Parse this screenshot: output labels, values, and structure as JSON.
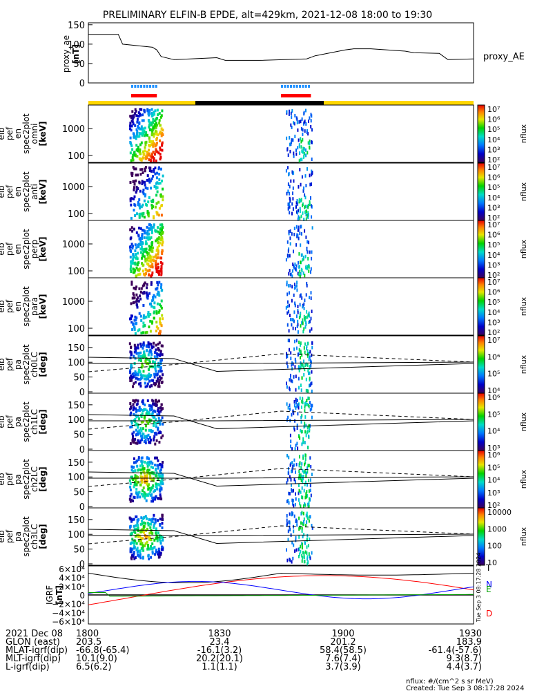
{
  "chart_data": {
    "type": "spectrogram-stack",
    "title": "PRELIMINARY ELFIN-B EPDE, alt=429km, 2021-12-08 18:00 to 19:30",
    "time_range": [
      "2021-12-08 18:00",
      "2021-12-08 19:30"
    ],
    "x_ticks": [
      "1800",
      "1830",
      "1900",
      "1930"
    ],
    "panels": [
      {
        "id": "ae",
        "type": "line",
        "ylabel": [
          "proxy_ae",
          "[nT]"
        ],
        "ytick_labels": [
          "150",
          "100",
          "50",
          "0"
        ],
        "ylim": [
          0,
          150
        ],
        "right_label": "proxy_AE",
        "series_x_min": [
          0,
          7,
          8,
          15,
          16,
          17,
          20,
          30,
          32,
          40,
          51,
          53,
          60,
          62,
          66,
          74,
          76,
          82,
          84,
          90
        ],
        "series_values": [
          125,
          125,
          100,
          92,
          85,
          68,
          60,
          65,
          58,
          58,
          62,
          70,
          85,
          88,
          88,
          82,
          78,
          76,
          60,
          62
        ]
      },
      {
        "id": "indicators",
        "type": "bars",
        "blue_ranges_min": [
          [
            10,
            16
          ],
          [
            45,
            52
          ]
        ],
        "red_ranges_min": [
          [
            10,
            16
          ],
          [
            45,
            52
          ]
        ],
        "yellow_black_bar_min": [
          [
            0,
            25,
            "yellow"
          ],
          [
            25,
            55,
            "black"
          ],
          [
            55,
            90,
            "yellow"
          ]
        ]
      },
      {
        "id": "omni",
        "type": "heatmap",
        "ylabel": [
          "elb",
          "pef",
          "en",
          "spec2plot",
          "omni",
          "[keV]"
        ],
        "ytick_labels": [
          "1000",
          "100"
        ],
        "colorbar": {
          "label": "nflux",
          "ticks": [
            "10⁷",
            "10⁶",
            "10⁵",
            "10⁴",
            "10³",
            "10²"
          ]
        }
      },
      {
        "id": "anti",
        "type": "heatmap",
        "ylabel": [
          "elb",
          "pef",
          "en",
          "spec2plot",
          "anti",
          "[keV]"
        ],
        "ytick_labels": [
          "1000",
          "100"
        ],
        "colorbar": {
          "label": "nflux",
          "ticks": [
            "10⁷",
            "10⁶",
            "10⁵",
            "10⁴",
            "10³",
            "10²"
          ]
        }
      },
      {
        "id": "perp",
        "type": "heatmap",
        "ylabel": [
          "elb",
          "pef",
          "en",
          "spec2plot",
          "perp",
          "[keV]"
        ],
        "ytick_labels": [
          "1000",
          "100"
        ],
        "colorbar": {
          "label": "nflux",
          "ticks": [
            "10⁷",
            "10⁶",
            "10⁵",
            "10⁴",
            "10³",
            "10²"
          ]
        }
      },
      {
        "id": "para",
        "type": "heatmap",
        "ylabel": [
          "elb",
          "pef",
          "en",
          "spec2plot",
          "para",
          "[keV]"
        ],
        "ytick_labels": [
          "1000",
          "100"
        ],
        "colorbar": {
          "label": "nflux",
          "ticks": [
            "10⁷",
            "10⁶",
            "10⁵",
            "10⁴",
            "10³",
            "10²"
          ]
        }
      },
      {
        "id": "ch0",
        "type": "heatmap",
        "ylabel": [
          "elb",
          "pef",
          "pa",
          "spec2plot",
          "ch0LC",
          "[deg]"
        ],
        "ytick_labels": [
          "150",
          "100",
          "50",
          "0"
        ],
        "colorbar": {
          "label": "nflux",
          "ticks": [
            "10⁷",
            "10⁶",
            "10⁵",
            "10⁴"
          ]
        }
      },
      {
        "id": "ch1",
        "type": "heatmap",
        "ylabel": [
          "elb",
          "pef",
          "pa",
          "spec2plot",
          "ch1LC",
          "[deg]"
        ],
        "ytick_labels": [
          "150",
          "100",
          "50",
          "0"
        ],
        "colorbar": {
          "label": "nflux",
          "ticks": [
            "10⁶",
            "10⁵",
            "10⁴",
            "10³"
          ]
        }
      },
      {
        "id": "ch2",
        "type": "heatmap",
        "ylabel": [
          "elb",
          "pef",
          "pa",
          "spec2plot",
          "ch2LC",
          "[deg]"
        ],
        "ytick_labels": [
          "150",
          "100",
          "50",
          "0"
        ],
        "colorbar": {
          "label": "nflux",
          "ticks": [
            "10⁶",
            "10⁵",
            "10⁴",
            "10³",
            "10²"
          ]
        }
      },
      {
        "id": "ch3",
        "type": "heatmap",
        "ylabel": [
          "elb",
          "pef",
          "pa",
          "spec2plot",
          "ch3LC",
          "[deg]"
        ],
        "ytick_labels": [
          "150",
          "100",
          "50",
          "0"
        ],
        "colorbar": {
          "label": "nflux",
          "ticks": [
            "10000",
            "1000",
            "100",
            "10"
          ]
        }
      },
      {
        "id": "igrf",
        "type": "line",
        "ylabel": [
          "IGRF",
          "[nT]"
        ],
        "ytick_labels": [
          "6×10⁴",
          "4×10⁴",
          "2×10⁴",
          "0",
          "−2×10⁴",
          "−4×10⁴",
          "−6×10⁴"
        ],
        "ylim": [
          -60000,
          60000
        ],
        "legend": [
          {
            "name": "T",
            "color": "#000000"
          },
          {
            "name": "N",
            "color": "#0000ff"
          },
          {
            "name": "E",
            "color": "#00a000"
          },
          {
            "name": "D",
            "color": "#ff0000"
          }
        ],
        "side_note": "Tue Sep  3 08:17:28 2024"
      }
    ],
    "ephemeris": {
      "row_labels": [
        "2021 Dec 08",
        "GLON (east)",
        "MLAT-igrf(dip)",
        "MLT-igrf(dip)",
        "L-igrf(dip)"
      ],
      "columns": [
        [
          "1800",
          "203.5",
          "-66.8(-65.4)",
          "10.1(9.0)",
          "6.5(6.2)"
        ],
        [
          "1830",
          "23.4",
          "-16.1(3.2)",
          "20.2(20.1)",
          "1.1(1.1)"
        ],
        [
          "1900",
          "201.2",
          "58.4(58.5)",
          "7.6(7.4)",
          "3.7(3.9)"
        ],
        [
          "1930",
          "183.9",
          "-61.4(-57.6)",
          "9.3(8.7)",
          "4.4(3.7)"
        ]
      ]
    },
    "footer": [
      "nflux: #/(cm^2 s sr MeV)",
      "Created: Tue Sep  3 08:17:28 2024"
    ]
  }
}
